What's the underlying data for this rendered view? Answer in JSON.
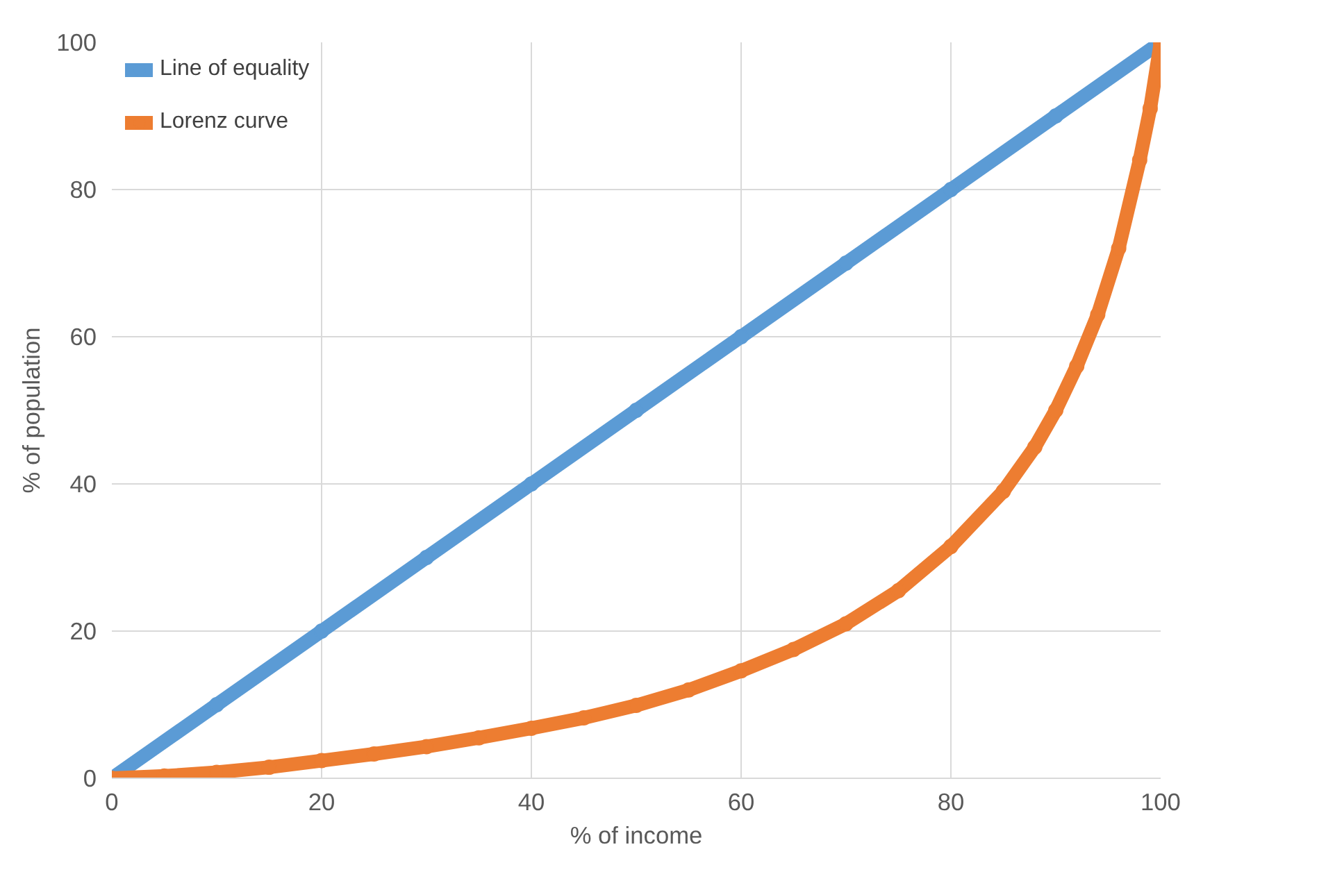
{
  "chart_data": {
    "type": "line",
    "xlabel": "% of income",
    "ylabel": "% of population",
    "xlim": [
      0,
      100
    ],
    "ylim": [
      0,
      100
    ],
    "xticks": [
      0,
      20,
      40,
      60,
      80,
      100
    ],
    "yticks": [
      0,
      20,
      40,
      60,
      80,
      100
    ],
    "grid": true,
    "legend": "top left",
    "marker": "circle",
    "series": [
      {
        "name": "Line of equality",
        "color": "#5b9bd5",
        "x": [
          0,
          10,
          20,
          30,
          40,
          50,
          60,
          70,
          80,
          90,
          100
        ],
        "values": [
          0,
          10,
          20,
          30,
          40,
          50,
          60,
          70,
          80,
          90,
          100
        ]
      },
      {
        "name": "Lorenz curve",
        "color": "#ed7d31",
        "x": [
          0,
          5,
          10,
          15,
          20,
          25,
          30,
          35,
          40,
          45,
          50,
          55,
          60,
          65,
          70,
          75,
          80,
          85,
          88,
          90,
          92,
          94,
          96,
          98,
          99,
          100
        ],
        "values": [
          0,
          0.3,
          0.8,
          1.5,
          2.4,
          3.3,
          4.3,
          5.5,
          6.8,
          8.2,
          9.9,
          12,
          14.6,
          17.5,
          21,
          25.5,
          31.5,
          39,
          45,
          50,
          56,
          63,
          72,
          84,
          91,
          100
        ]
      }
    ]
  }
}
